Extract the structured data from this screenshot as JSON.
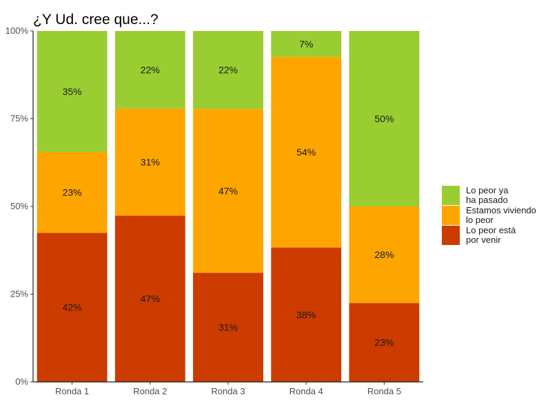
{
  "chart_data": {
    "type": "bar",
    "stacked": true,
    "title": "¿Y Ud. cree que...?",
    "xlabel": "",
    "ylabel": "",
    "categories": [
      "Ronda 1",
      "Ronda 2",
      "Ronda 3",
      "Ronda 4",
      "Ronda 5"
    ],
    "y_ticks": [
      "0%",
      "25%",
      "50%",
      "75%",
      "100%"
    ],
    "ylim": [
      0,
      100
    ],
    "grid": false,
    "legend_position": "right",
    "series": [
      {
        "name": "Lo peor está por venir",
        "legend_lines": [
          "Lo peor está",
          "por venir"
        ],
        "color": "#CC3B00",
        "values": [
          42,
          47,
          31,
          38,
          23
        ],
        "heights": [
          42.5,
          47.4,
          31.1,
          38.3,
          22.5
        ]
      },
      {
        "name": "Estamos viviendo lo peor",
        "legend_lines": [
          "Estamos viviendo",
          "lo peor"
        ],
        "color": "#FFA500",
        "values": [
          23,
          31,
          47,
          54,
          28
        ],
        "heights": [
          23.0,
          30.5,
          46.7,
          54.3,
          27.5
        ]
      },
      {
        "name": "Lo peor ya ha pasado",
        "legend_lines": [
          "Lo peor ya",
          "ha pasado"
        ],
        "color": "#9ACD32",
        "values": [
          35,
          22,
          22,
          7,
          50
        ],
        "heights": [
          34.5,
          22.1,
          22.2,
          7.4,
          50.0
        ]
      }
    ]
  }
}
